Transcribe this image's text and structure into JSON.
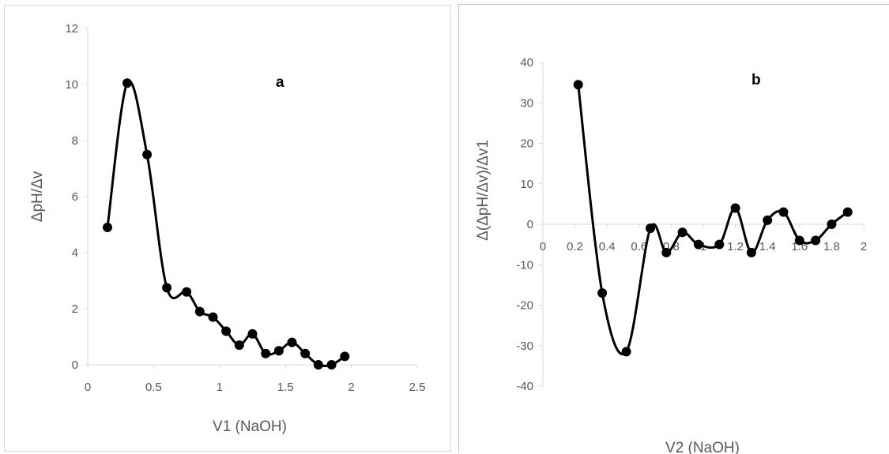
{
  "chart_data": [
    {
      "type": "line",
      "title": "",
      "panel_label": "a",
      "xlabel": "V1 (NaOH)",
      "ylabel": "ΔpH/Δv",
      "xlim": [
        0,
        2.5
      ],
      "ylim": [
        0,
        12
      ],
      "xticks": [
        "0",
        "0.5",
        "1",
        "1.5",
        "2",
        "2.5"
      ],
      "yticks": [
        "0",
        "2",
        "4",
        "6",
        "8",
        "10",
        "12"
      ],
      "grid": false,
      "smooth": true,
      "series": [
        {
          "color": "#000000",
          "x": [
            0.15,
            0.3,
            0.45,
            0.6,
            0.75,
            0.85,
            0.95,
            1.05,
            1.15,
            1.25,
            1.35,
            1.45,
            1.55,
            1.65,
            1.75,
            1.85,
            1.95
          ],
          "y": [
            4.9,
            10.05,
            7.5,
            2.75,
            2.6,
            1.9,
            1.7,
            1.2,
            0.7,
            1.1,
            0.4,
            0.5,
            0.8,
            0.4,
            0.0,
            0.0,
            0.3
          ]
        }
      ]
    },
    {
      "type": "line",
      "title": "",
      "panel_label": "b",
      "xlabel": "V2 (NaOH)",
      "ylabel": "Δ(ΔpH/Δv)/Δv1",
      "xlim": [
        0,
        2
      ],
      "ylim": [
        -40,
        40
      ],
      "xticks": [
        "0",
        "0.2",
        "0.4",
        "0.6",
        "0.8",
        "1",
        "1.2",
        "1.4",
        "1.6",
        "1.8",
        "2"
      ],
      "yticks": [
        "-40",
        "-30",
        "-20",
        "-10",
        "0",
        "10",
        "20",
        "30",
        "40"
      ],
      "grid": false,
      "smooth": true,
      "series": [
        {
          "color": "#000000",
          "x": [
            0.22,
            0.37,
            0.52,
            0.67,
            0.77,
            0.87,
            0.97,
            1.1,
            1.2,
            1.3,
            1.4,
            1.5,
            1.6,
            1.7,
            1.8,
            1.9
          ],
          "y": [
            34.5,
            -17,
            -31.5,
            -1,
            -7,
            -2,
            -5,
            -5,
            4,
            -7,
            1,
            3,
            -4,
            -4,
            0,
            3
          ]
        }
      ]
    }
  ]
}
